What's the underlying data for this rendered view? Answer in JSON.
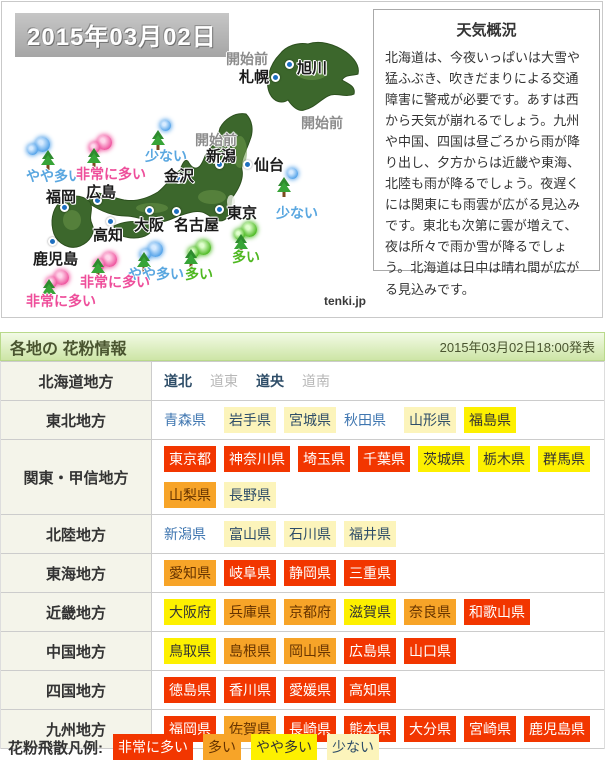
{
  "date_badge": "2015年03月02日",
  "map": {
    "watermark": "tenki.jp",
    "cities": [
      "旭川",
      "札幌",
      "新潟",
      "仙台",
      "金沢",
      "東京",
      "名古屋",
      "大阪",
      "広島",
      "高知",
      "福岡",
      "鹿児島"
    ],
    "status": [
      {
        "text": "開始前",
        "level": "notstarted"
      },
      {
        "text": "開始前",
        "level": "notstarted"
      },
      {
        "text": "開始前",
        "level": "notstarted"
      },
      {
        "text": "少ない",
        "level": "few"
      },
      {
        "text": "少ない",
        "level": "few"
      },
      {
        "text": "やや多い",
        "level": "somewhat"
      },
      {
        "text": "やや多い",
        "level": "somewhat"
      },
      {
        "text": "非常に多い",
        "level": "verymuch"
      },
      {
        "text": "非常に多い",
        "level": "verymuch"
      },
      {
        "text": "非常に多い",
        "level": "verymuch"
      },
      {
        "text": "多い",
        "level": "much"
      },
      {
        "text": "多い",
        "level": "much"
      }
    ],
    "label_colors": {
      "notstarted": "#8c8c8c",
      "few": "#5aa7e0",
      "somewhat": "#5aa7e0",
      "verymuch": "#ee4f9b",
      "much": "#4fb821"
    }
  },
  "weather_box": {
    "title": "天気概況",
    "body": "北海道は、今夜いっぱいは大雪や猛ふぶき、吹きだまりによる交通障害に警戒が必要です。あすは西から天気が崩れるでしょう。九州や中国、四国は昼ごろから雨が降り出し、夕方からは近畿や東海、北陸も雨が降るでしょう。夜遅くには関東にも雨雲が広がる見込みです。東北も次第に雲が増えて、夜は所々で雨か雪が降るでしょう。北海道は日中は晴れ間が広がる見込みです。"
  },
  "section_header": {
    "title": "各地の 花粉情報",
    "published": "2015年03月02日18:00発表"
  },
  "levels": {
    "verymuch": {
      "label": "非常に多い",
      "bg": "#f23600",
      "fg": "#ffffff"
    },
    "much": {
      "label": "多い",
      "bg": "#f7a428",
      "fg": "#663300"
    },
    "somewhat": {
      "label": "やや多い",
      "bg": "#fdf000",
      "fg": "#333333"
    },
    "few": {
      "label": "少ない",
      "bg": "#fcf4bb",
      "fg": "#2e4d68"
    }
  },
  "link_colors": {
    "link": "#3f76b0",
    "link-dark": "#2e4d68",
    "link-gray": "#b8b8b8"
  },
  "table": {
    "regions": [
      {
        "name": "北海道地方",
        "items": [
          {
            "label": "道北",
            "level": "link-dark"
          },
          {
            "label": "道東",
            "level": "link-gray"
          },
          {
            "label": "道央",
            "level": "link-dark"
          },
          {
            "label": "道南",
            "level": "link-gray"
          }
        ]
      },
      {
        "name": "東北地方",
        "items": [
          {
            "label": "青森県",
            "level": "link"
          },
          {
            "label": "岩手県",
            "level": "few"
          },
          {
            "label": "宮城県",
            "level": "few"
          },
          {
            "label": "秋田県",
            "level": "link"
          },
          {
            "label": "山形県",
            "level": "few"
          },
          {
            "label": "福島県",
            "level": "somewhat"
          }
        ]
      },
      {
        "name": "関東・甲信地方",
        "items": [
          {
            "label": "東京都",
            "level": "verymuch"
          },
          {
            "label": "神奈川県",
            "level": "verymuch"
          },
          {
            "label": "埼玉県",
            "level": "verymuch"
          },
          {
            "label": "千葉県",
            "level": "verymuch"
          },
          {
            "label": "茨城県",
            "level": "somewhat"
          },
          {
            "label": "栃木県",
            "level": "somewhat"
          },
          {
            "label": "群馬県",
            "level": "somewhat"
          },
          {
            "label": "山梨県",
            "level": "much"
          },
          {
            "label": "長野県",
            "level": "few"
          }
        ]
      },
      {
        "name": "北陸地方",
        "items": [
          {
            "label": "新潟県",
            "level": "link"
          },
          {
            "label": "富山県",
            "level": "few"
          },
          {
            "label": "石川県",
            "level": "few"
          },
          {
            "label": "福井県",
            "level": "few"
          }
        ]
      },
      {
        "name": "東海地方",
        "items": [
          {
            "label": "愛知県",
            "level": "much"
          },
          {
            "label": "岐阜県",
            "level": "verymuch"
          },
          {
            "label": "静岡県",
            "level": "verymuch"
          },
          {
            "label": "三重県",
            "level": "verymuch"
          }
        ]
      },
      {
        "name": "近畿地方",
        "items": [
          {
            "label": "大阪府",
            "level": "somewhat"
          },
          {
            "label": "兵庫県",
            "level": "much"
          },
          {
            "label": "京都府",
            "level": "much"
          },
          {
            "label": "滋賀県",
            "level": "somewhat"
          },
          {
            "label": "奈良県",
            "level": "much"
          },
          {
            "label": "和歌山県",
            "level": "verymuch"
          }
        ]
      },
      {
        "name": "中国地方",
        "items": [
          {
            "label": "鳥取県",
            "level": "somewhat"
          },
          {
            "label": "島根県",
            "level": "much"
          },
          {
            "label": "岡山県",
            "level": "much"
          },
          {
            "label": "広島県",
            "level": "verymuch"
          },
          {
            "label": "山口県",
            "level": "verymuch"
          }
        ]
      },
      {
        "name": "四国地方",
        "items": [
          {
            "label": "徳島県",
            "level": "verymuch"
          },
          {
            "label": "香川県",
            "level": "verymuch"
          },
          {
            "label": "愛媛県",
            "level": "verymuch"
          },
          {
            "label": "高知県",
            "level": "verymuch"
          }
        ]
      },
      {
        "name": "九州地方",
        "items": [
          {
            "label": "福岡県",
            "level": "verymuch"
          },
          {
            "label": "佐賀県",
            "level": "much"
          },
          {
            "label": "長崎県",
            "level": "verymuch"
          },
          {
            "label": "熊本県",
            "level": "verymuch"
          },
          {
            "label": "大分県",
            "level": "verymuch"
          },
          {
            "label": "宮崎県",
            "level": "verymuch"
          },
          {
            "label": "鹿児島県",
            "level": "verymuch"
          }
        ]
      }
    ]
  },
  "legend": {
    "title": "花粉飛散凡例:"
  }
}
